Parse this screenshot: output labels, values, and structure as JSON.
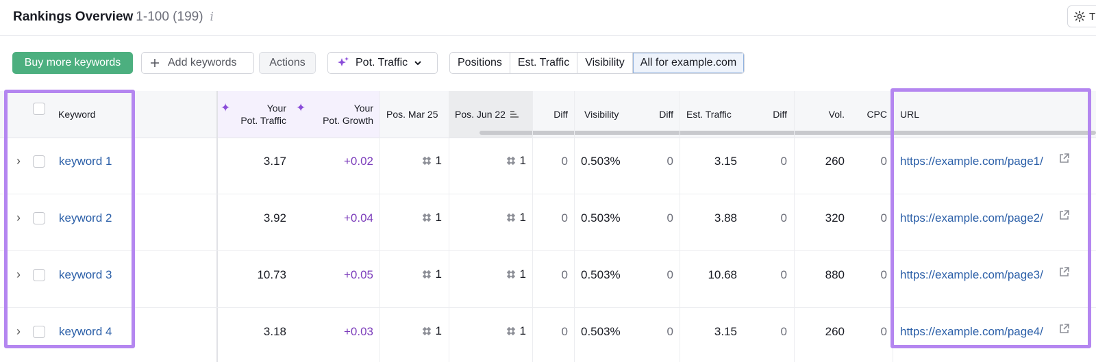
{
  "header": {
    "title": "Rankings Overview",
    "range": "1-100 (199)",
    "info": "i",
    "settings_label": "T"
  },
  "toolbar": {
    "buy_label": "Buy more keywords",
    "add_label": "Add keywords",
    "add_icon": "plus-icon",
    "actions_label": "Actions",
    "pot_traffic_label": "Pot. Traffic",
    "segments": [
      "Positions",
      "Est. Traffic",
      "Visibility",
      "All for example.com"
    ],
    "active_segment": "All for example.com"
  },
  "columns": {
    "keyword": "Keyword",
    "pot_traffic": [
      "Your",
      "Pot. Traffic"
    ],
    "pot_growth": [
      "Your",
      "Pot. Growth"
    ],
    "pos_mar": "Pos. Mar 25",
    "pos_jun": "Pos. Jun 22",
    "diff1": "Diff",
    "visibility": "Visibility",
    "diff2": "Diff",
    "est_traffic": "Est. Traffic",
    "diff3": "Diff",
    "vol": "Vol.",
    "cpc": "CPC",
    "url": "URL"
  },
  "rows": [
    {
      "keyword": "keyword 1",
      "pot_traffic": "3.17",
      "pot_growth": "+0.02",
      "pos_mar": "1",
      "pos_jun": "1",
      "diff1": "0",
      "visibility": "0.503%",
      "diff2": "0",
      "est_traffic": "3.15",
      "diff3": "0",
      "vol": "260",
      "cpc": "0",
      "url": "https://example.com/page1/"
    },
    {
      "keyword": "keyword 2",
      "pot_traffic": "3.92",
      "pot_growth": "+0.04",
      "pos_mar": "1",
      "pos_jun": "1",
      "diff1": "0",
      "visibility": "0.503%",
      "diff2": "0",
      "est_traffic": "3.88",
      "diff3": "0",
      "vol": "320",
      "cpc": "0",
      "url": "https://example.com/page2/"
    },
    {
      "keyword": "keyword 3",
      "pot_traffic": "10.73",
      "pot_growth": "+0.05",
      "pos_mar": "1",
      "pos_jun": "1",
      "diff1": "0",
      "visibility": "0.503%",
      "diff2": "0",
      "est_traffic": "10.68",
      "diff3": "0",
      "vol": "880",
      "cpc": "0",
      "url": "https://example.com/page3/"
    },
    {
      "keyword": "keyword 4",
      "pot_traffic": "3.18",
      "pot_growth": "+0.03",
      "pos_mar": "1",
      "pos_jun": "1",
      "diff1": "0",
      "visibility": "0.503%",
      "diff2": "0",
      "est_traffic": "3.15",
      "diff3": "0",
      "vol": "260",
      "cpc": "0",
      "url": "https://example.com/page4/"
    }
  ],
  "colors": {
    "highlight": "#b486f0",
    "primary": "#4caf7f",
    "link": "#2b5fa8",
    "growth": "#7c3dbb"
  }
}
